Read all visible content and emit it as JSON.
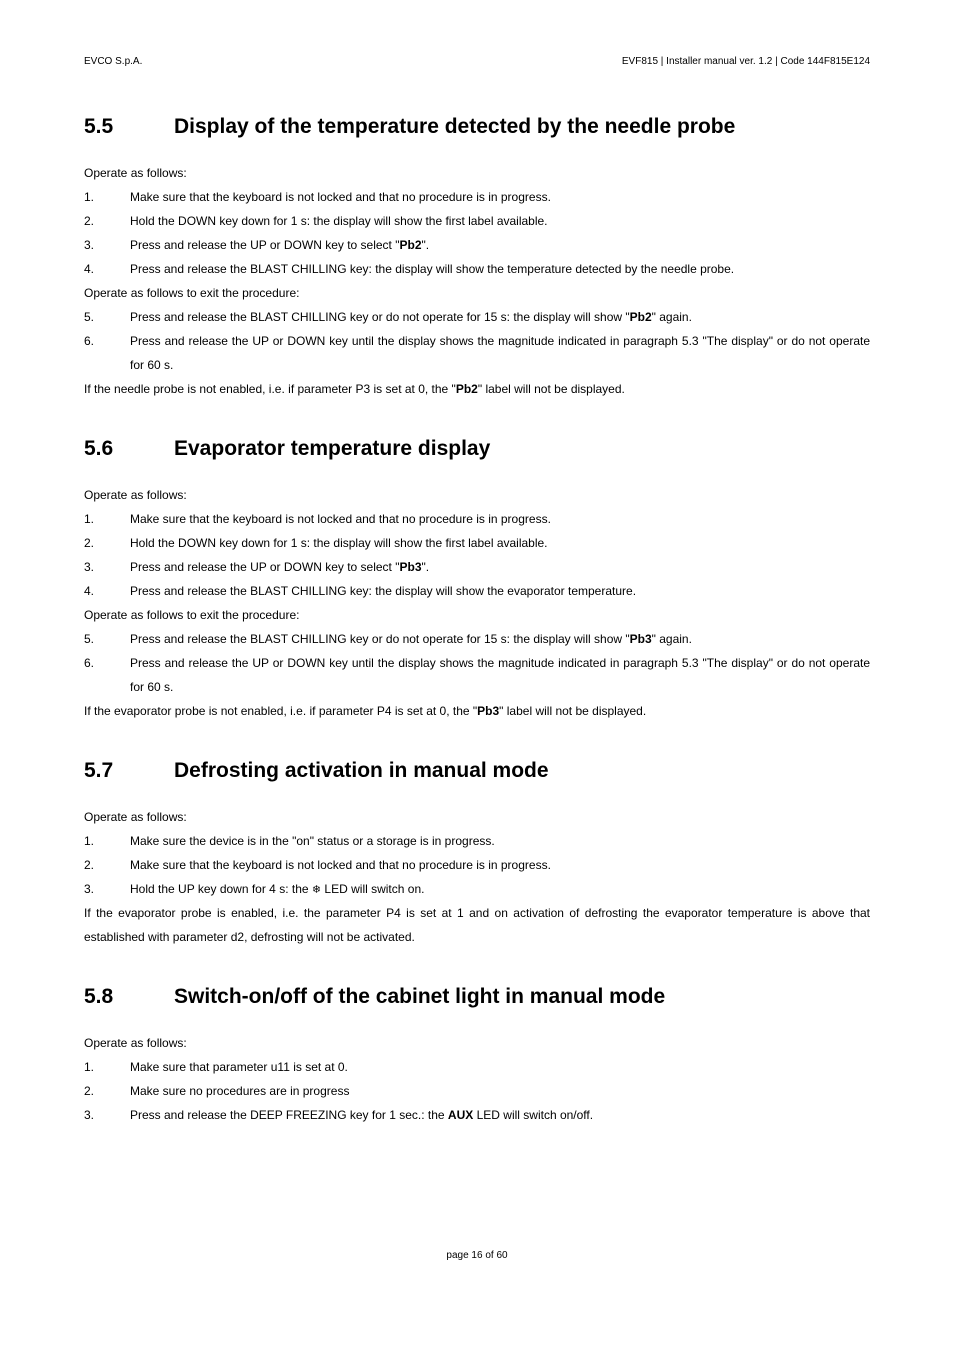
{
  "header": {
    "left": "EVCO S.p.A.",
    "right": "EVF815 | Installer manual ver. 1.2 | Code 144F815E124"
  },
  "sections": {
    "s55": {
      "num": "5.5",
      "title": "Display of the temperature detected by the needle probe",
      "intro1": "Operate as follows:",
      "i1n": "1.",
      "i1": "Make sure that the keyboard is not locked and that no procedure is in progress.",
      "i2n": "2.",
      "i2": "Hold the DOWN key down for 1 s: the display will show the first label available.",
      "i3n": "3.",
      "i3a": "Press and release the UP or DOWN key to select \"",
      "i3b": "Pb2",
      "i3c": "\".",
      "i4n": "4.",
      "i4": "Press and release the BLAST CHILLING key: the display will show the temperature detected by the needle probe.",
      "intro2": "Operate as follows to exit the procedure:",
      "i5n": "5.",
      "i5a": "Press and release the BLAST CHILLING key or do not operate for 15 s: the display will show \"",
      "i5b": "Pb2",
      "i5c": "\" again.",
      "i6n": "6.",
      "i6": "Press and release the UP or DOWN key until the display shows the magnitude indicated in paragraph 5.3 \"The display\" or do not operate for 60 s.",
      "note_a": "If the needle probe is not enabled, i.e. if parameter P3 is set at 0, the \"",
      "note_b": "Pb2",
      "note_c": "\" label will not be displayed."
    },
    "s56": {
      "num": "5.6",
      "title": "Evaporator temperature display",
      "intro1": "Operate as follows:",
      "i1n": "1.",
      "i1": "Make sure that the keyboard is not locked and that no procedure is in progress.",
      "i2n": "2.",
      "i2": "Hold the DOWN key down for 1 s: the display will show the first label available.",
      "i3n": "3.",
      "i3a": "Press and release the UP or DOWN key to select \"",
      "i3b": "Pb3",
      "i3c": "\".",
      "i4n": "4.",
      "i4": "Press and release the BLAST CHILLING key: the display will show the evaporator temperature.",
      "intro2": "Operate as follows to exit the procedure:",
      "i5n": "5.",
      "i5a": "Press and release the BLAST CHILLING key or do not operate for 15 s: the display will show \"",
      "i5b": "Pb3",
      "i5c": "\" again.",
      "i6n": "6.",
      "i6": "Press and release the UP or DOWN key until the display shows the magnitude indicated in paragraph 5.3 \"The display\" or do not operate for 60 s.",
      "note_a": "If the evaporator probe is not enabled, i.e. if parameter P4 is set at 0, the \"",
      "note_b": "Pb3",
      "note_c": "\" label will not be displayed."
    },
    "s57": {
      "num": "5.7",
      "title": "Defrosting activation in manual mode",
      "intro1": "Operate as follows:",
      "i1n": "1.",
      "i1": "Make sure the device is in the \"on\" status or a storage is in progress.",
      "i2n": "2.",
      "i2": "Make sure that the keyboard is not locked and that no procedure is in progress.",
      "i3n": "3.",
      "i3a": "Hold the UP key down for 4 s: the ",
      "i3b": " LED will switch on.",
      "note": "If the evaporator probe is enabled, i.e. the parameter P4 is set at 1 and on activation of defrosting the evaporator temperature is above that established with parameter d2, defrosting will not be activated."
    },
    "s58": {
      "num": "5.8",
      "title": "Switch-on/off of the cabinet light in manual mode",
      "intro1": "Operate as follows:",
      "i1n": "1.",
      "i1": "Make sure that parameter u11 is set at 0.",
      "i2n": "2.",
      "i2": "Make sure no procedures are in progress",
      "i3n": "3.",
      "i3a": "Press and release the DEEP FREEZING key for 1 sec.: the ",
      "i3b": "AUX",
      "i3c": " LED will switch on/off."
    }
  },
  "footer": "page 16 of 60",
  "icons": {
    "snowflake": "❄"
  }
}
